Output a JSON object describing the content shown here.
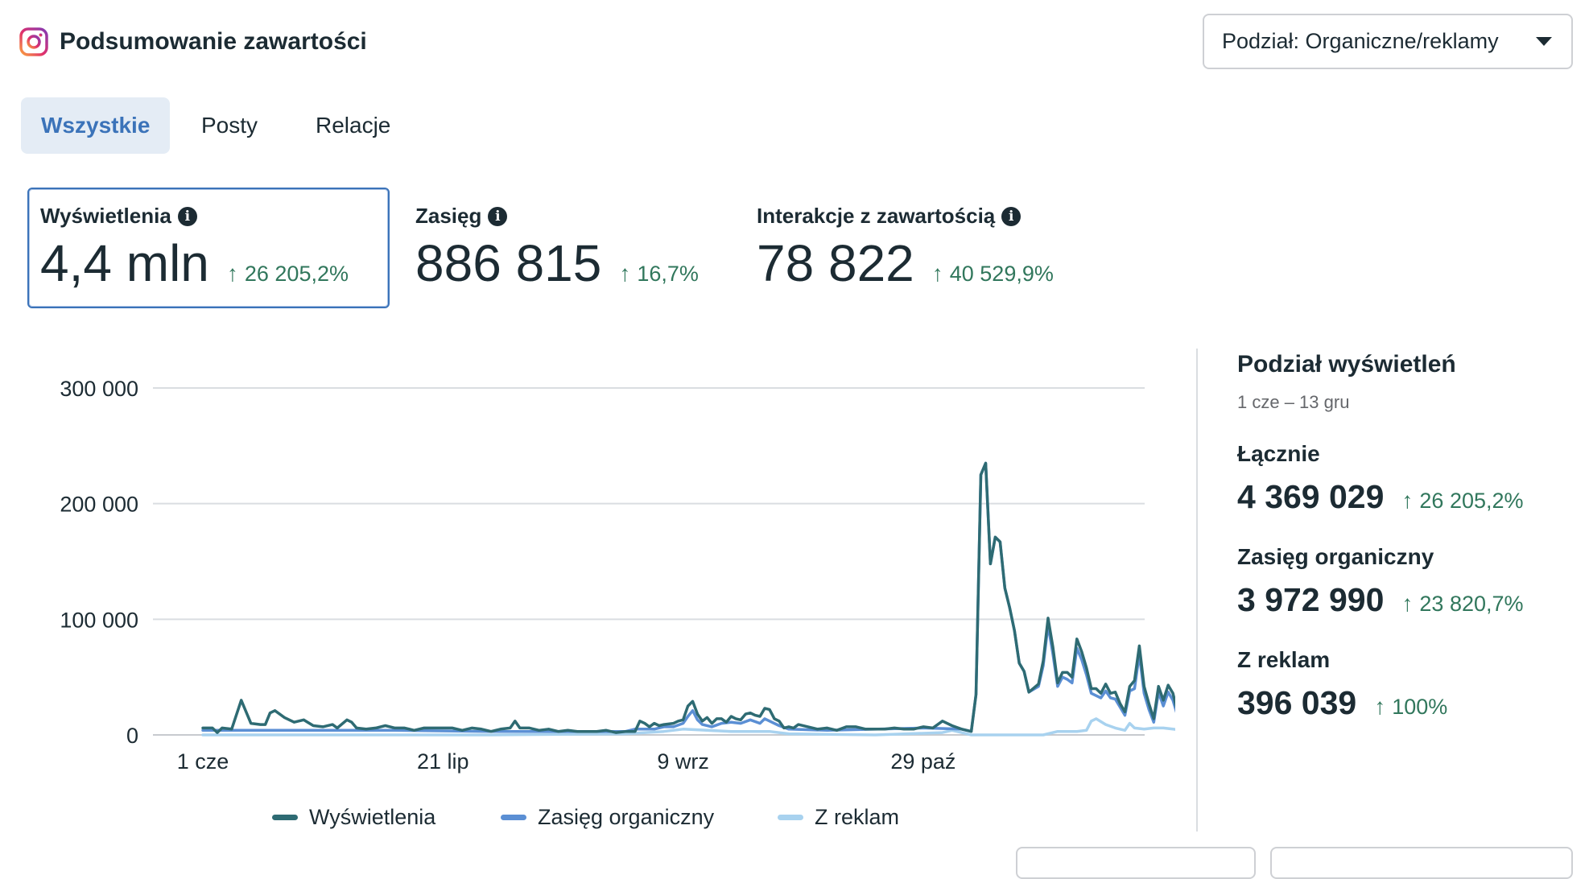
{
  "header": {
    "title": "Podsumowanie zawartości",
    "app_icon": "instagram-icon",
    "split_dropdown": {
      "label": "Podział: Organiczne/reklamy",
      "icon": "caret-down-icon"
    }
  },
  "tabs": [
    {
      "label": "Wszystkie",
      "active": true
    },
    {
      "label": "Posty",
      "active": false
    },
    {
      "label": "Relacje",
      "active": false
    }
  ],
  "metrics": [
    {
      "label": "Wyświetlenia",
      "value": "4,4 mln",
      "delta": "26 205,2%",
      "selected": true
    },
    {
      "label": "Zasięg",
      "value": "886 815",
      "delta": "16,7%",
      "selected": false
    },
    {
      "label": "Interakcje z zawartością",
      "value": "78 822",
      "delta": "40 529,9%",
      "selected": false
    }
  ],
  "colors": {
    "accent": "#3b73b9",
    "positive": "#31775c",
    "series_views": "#2e6b73",
    "series_organic": "#5b8fd4",
    "series_ads": "#a8d2ef"
  },
  "breakdown": {
    "title": "Podział wyświetleń",
    "range": "1 cze – 13 gru",
    "items": [
      {
        "label": "Łącznie",
        "value": "4 369 029",
        "delta": "26 205,2%"
      },
      {
        "label": "Zasięg organiczny",
        "value": "3 972 990",
        "delta": "23 820,7%"
      },
      {
        "label": "Z reklam",
        "value": "396 039",
        "delta": "100%"
      }
    ]
  },
  "chart_data": {
    "type": "line",
    "x_ticks": [
      "1 cze",
      "21 lip",
      "9 wrz",
      "29 paź"
    ],
    "x_tick_days": [
      0,
      50,
      100,
      150
    ],
    "y_ticks": [
      "300 000",
      "200 000",
      "100 000",
      "0"
    ],
    "y_tick_values": [
      300000,
      200000,
      100000,
      0
    ],
    "ylim": [
      0,
      300000
    ],
    "xlim_days": [
      0,
      195
    ],
    "grid": true,
    "legend_position": "bottom",
    "series": [
      {
        "name": "Wyświetlenia",
        "color": "#2e6b73",
        "points": [
          [
            0,
            6000
          ],
          [
            2,
            6000
          ],
          [
            3,
            2000
          ],
          [
            4,
            6000
          ],
          [
            6,
            5000
          ],
          [
            8,
            30000
          ],
          [
            10,
            10000
          ],
          [
            12,
            9000
          ],
          [
            13,
            9000
          ],
          [
            14,
            19000
          ],
          [
            15,
            21000
          ],
          [
            17,
            15000
          ],
          [
            19,
            11000
          ],
          [
            21,
            13000
          ],
          [
            23,
            8000
          ],
          [
            25,
            7000
          ],
          [
            27,
            9000
          ],
          [
            28,
            6000
          ],
          [
            30,
            13000
          ],
          [
            31,
            11000
          ],
          [
            32,
            6000
          ],
          [
            34,
            5000
          ],
          [
            36,
            6000
          ],
          [
            38,
            8000
          ],
          [
            40,
            6000
          ],
          [
            42,
            6000
          ],
          [
            44,
            4000
          ],
          [
            46,
            6000
          ],
          [
            48,
            6000
          ],
          [
            50,
            6000
          ],
          [
            52,
            6000
          ],
          [
            54,
            4000
          ],
          [
            56,
            6000
          ],
          [
            58,
            5000
          ],
          [
            60,
            3000
          ],
          [
            62,
            5000
          ],
          [
            64,
            6000
          ],
          [
            65,
            12000
          ],
          [
            66,
            6000
          ],
          [
            68,
            6000
          ],
          [
            70,
            4000
          ],
          [
            72,
            5000
          ],
          [
            74,
            3000
          ],
          [
            76,
            4000
          ],
          [
            78,
            3000
          ],
          [
            80,
            3000
          ],
          [
            82,
            3000
          ],
          [
            84,
            4000
          ],
          [
            86,
            2000
          ],
          [
            88,
            3000
          ],
          [
            90,
            3000
          ],
          [
            91,
            12000
          ],
          [
            92,
            10000
          ],
          [
            93,
            7000
          ],
          [
            94,
            10000
          ],
          [
            95,
            8000
          ],
          [
            96,
            9000
          ],
          [
            98,
            10000
          ],
          [
            99,
            12000
          ],
          [
            100,
            13000
          ],
          [
            101,
            25000
          ],
          [
            102,
            29000
          ],
          [
            103,
            18000
          ],
          [
            104,
            12000
          ],
          [
            105,
            15000
          ],
          [
            106,
            10000
          ],
          [
            107,
            14000
          ],
          [
            108,
            14000
          ],
          [
            109,
            11000
          ],
          [
            110,
            16000
          ],
          [
            111,
            14000
          ],
          [
            112,
            13000
          ],
          [
            113,
            18000
          ],
          [
            114,
            19000
          ],
          [
            115,
            17000
          ],
          [
            116,
            16000
          ],
          [
            117,
            23000
          ],
          [
            118,
            22000
          ],
          [
            119,
            14000
          ],
          [
            120,
            12000
          ],
          [
            121,
            6000
          ],
          [
            122,
            7000
          ],
          [
            123,
            6000
          ],
          [
            124,
            9000
          ],
          [
            126,
            7000
          ],
          [
            128,
            5000
          ],
          [
            130,
            6000
          ],
          [
            132,
            4000
          ],
          [
            134,
            7000
          ],
          [
            136,
            7000
          ],
          [
            138,
            5000
          ],
          [
            140,
            5000
          ],
          [
            142,
            5000
          ],
          [
            144,
            6000
          ],
          [
            146,
            5000
          ],
          [
            148,
            5000
          ],
          [
            150,
            7000
          ],
          [
            152,
            6000
          ],
          [
            154,
            12000
          ],
          [
            156,
            8000
          ],
          [
            158,
            5000
          ],
          [
            160,
            3000
          ],
          [
            161,
            35000
          ],
          [
            162,
            225000
          ],
          [
            163,
            235000
          ],
          [
            164,
            148000
          ],
          [
            165,
            171000
          ],
          [
            166,
            167000
          ],
          [
            167,
            127000
          ],
          [
            168,
            110000
          ],
          [
            169,
            90000
          ],
          [
            170,
            62000
          ],
          [
            171,
            55000
          ],
          [
            172,
            37000
          ],
          [
            174,
            44000
          ],
          [
            175,
            64000
          ],
          [
            176,
            101000
          ],
          [
            177,
            76000
          ],
          [
            178,
            45000
          ],
          [
            179,
            54000
          ],
          [
            180,
            54000
          ],
          [
            181,
            50000
          ],
          [
            182,
            83000
          ],
          [
            183,
            72000
          ],
          [
            184,
            58000
          ],
          [
            185,
            40000
          ],
          [
            186,
            40000
          ],
          [
            187,
            36000
          ],
          [
            188,
            44000
          ],
          [
            189,
            36000
          ],
          [
            190,
            37000
          ],
          [
            191,
            27000
          ],
          [
            192,
            20000
          ],
          [
            193,
            42000
          ],
          [
            194,
            47000
          ],
          [
            195,
            77000
          ],
          [
            196,
            42000
          ],
          [
            197,
            27000
          ],
          [
            198,
            14000
          ],
          [
            199,
            42000
          ],
          [
            200,
            30000
          ],
          [
            201,
            43000
          ],
          [
            202,
            36000
          ],
          [
            203,
            19000
          ],
          [
            204,
            20000
          ],
          [
            205,
            14000
          ]
        ]
      },
      {
        "name": "Zasięg organiczny",
        "color": "#5b8fd4",
        "points": [
          [
            0,
            4000
          ],
          [
            20,
            4000
          ],
          [
            40,
            4000
          ],
          [
            60,
            3000
          ],
          [
            80,
            3000
          ],
          [
            88,
            3000
          ],
          [
            90,
            5000
          ],
          [
            92,
            5000
          ],
          [
            94,
            5000
          ],
          [
            96,
            7000
          ],
          [
            98,
            7000
          ],
          [
            100,
            10000
          ],
          [
            101,
            16000
          ],
          [
            102,
            21000
          ],
          [
            103,
            13000
          ],
          [
            104,
            9000
          ],
          [
            106,
            7000
          ],
          [
            108,
            10000
          ],
          [
            110,
            11000
          ],
          [
            112,
            10000
          ],
          [
            114,
            13000
          ],
          [
            116,
            10000
          ],
          [
            117,
            14000
          ],
          [
            118,
            12000
          ],
          [
            120,
            8000
          ],
          [
            122,
            5000
          ],
          [
            130,
            4000
          ],
          [
            150,
            6000
          ],
          [
            158,
            5000
          ],
          [
            160,
            3000
          ],
          [
            161,
            35000
          ],
          [
            162,
            225000
          ],
          [
            163,
            235000
          ],
          [
            164,
            148000
          ],
          [
            165,
            171000
          ],
          [
            166,
            167000
          ],
          [
            167,
            127000
          ],
          [
            168,
            110000
          ],
          [
            169,
            90000
          ],
          [
            170,
            62000
          ],
          [
            171,
            55000
          ],
          [
            172,
            37000
          ],
          [
            174,
            42000
          ],
          [
            175,
            60000
          ],
          [
            176,
            95000
          ],
          [
            177,
            70000
          ],
          [
            178,
            42000
          ],
          [
            179,
            50000
          ],
          [
            180,
            48000
          ],
          [
            181,
            45000
          ],
          [
            182,
            75000
          ],
          [
            183,
            65000
          ],
          [
            184,
            52000
          ],
          [
            185,
            36000
          ],
          [
            186,
            34000
          ],
          [
            187,
            32000
          ],
          [
            188,
            38000
          ],
          [
            189,
            32000
          ],
          [
            190,
            31000
          ],
          [
            191,
            24000
          ],
          [
            192,
            17000
          ],
          [
            193,
            38000
          ],
          [
            194,
            40000
          ],
          [
            195,
            70000
          ],
          [
            196,
            36000
          ],
          [
            197,
            22000
          ],
          [
            198,
            11000
          ],
          [
            199,
            37000
          ],
          [
            200,
            25000
          ],
          [
            201,
            37000
          ],
          [
            202,
            30000
          ],
          [
            203,
            16000
          ],
          [
            204,
            16000
          ],
          [
            205,
            12000
          ]
        ]
      },
      {
        "name": "Z reklam",
        "color": "#a8d2ef",
        "points": [
          [
            0,
            0
          ],
          [
            60,
            0
          ],
          [
            88,
            1000
          ],
          [
            96,
            3000
          ],
          [
            100,
            5000
          ],
          [
            110,
            3000
          ],
          [
            118,
            3000
          ],
          [
            122,
            1000
          ],
          [
            140,
            0
          ],
          [
            154,
            2000
          ],
          [
            156,
            4000
          ],
          [
            158,
            2000
          ],
          [
            160,
            0
          ],
          [
            175,
            0
          ],
          [
            178,
            3000
          ],
          [
            182,
            3000
          ],
          [
            184,
            4000
          ],
          [
            185,
            12000
          ],
          [
            186,
            14000
          ],
          [
            188,
            9000
          ],
          [
            190,
            6000
          ],
          [
            192,
            4000
          ],
          [
            193,
            10000
          ],
          [
            194,
            6000
          ],
          [
            196,
            5000
          ],
          [
            198,
            6000
          ],
          [
            200,
            6000
          ],
          [
            202,
            5000
          ],
          [
            204,
            4000
          ],
          [
            205,
            3000
          ]
        ]
      }
    ]
  }
}
